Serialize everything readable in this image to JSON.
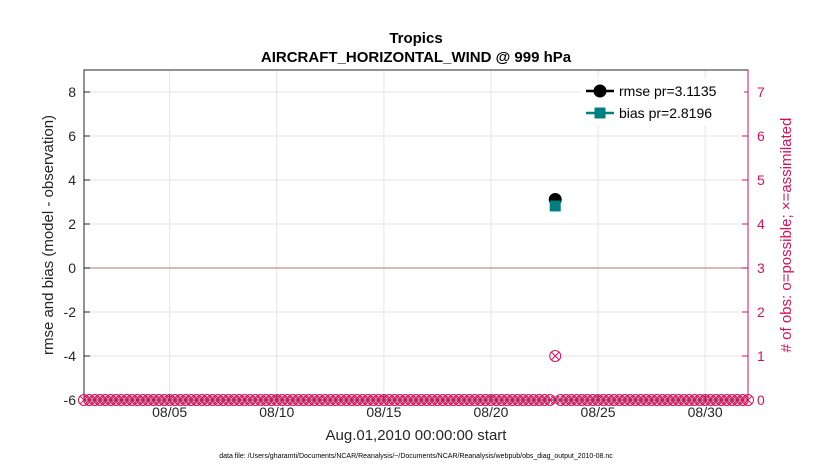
{
  "chart_data": {
    "type": "scatter",
    "title": "Tropics",
    "subtitle": "AIRCRAFT_HORIZONTAL_WIND @ 999 hPa",
    "xlabel": "Aug.01,2010 00:00:00 start",
    "ylabel": "rmse and bias (model - observation)",
    "y2label": "# of obs: o=possible; ×=assimilated",
    "xlim": [
      1,
      32
    ],
    "ylim": [
      -6,
      9
    ],
    "y2lim": [
      0,
      7.5
    ],
    "xticks": [
      {
        "v": 5,
        "label": "08/05"
      },
      {
        "v": 10,
        "label": "08/10"
      },
      {
        "v": 15,
        "label": "08/15"
      },
      {
        "v": 20,
        "label": "08/20"
      },
      {
        "v": 25,
        "label": "08/25"
      },
      {
        "v": 30,
        "label": "08/30"
      }
    ],
    "yticks": [
      -6,
      -4,
      -2,
      0,
      2,
      4,
      6,
      8
    ],
    "y2ticks": [
      0,
      1,
      2,
      3,
      4,
      5,
      6,
      7
    ],
    "series": [
      {
        "name": "rmse",
        "legend": "rmse pr=3.1135",
        "color": "#000000",
        "marker": "circle",
        "points": [
          {
            "x": 23,
            "y": 3.1135
          }
        ]
      },
      {
        "name": "bias",
        "legend": "bias pr=2.8196",
        "color": "#008080",
        "marker": "square",
        "points": [
          {
            "x": 23,
            "y": 2.8196
          }
        ]
      }
    ],
    "obs_counts": {
      "color": "#d6125c",
      "x_start": 1,
      "x_end": 32,
      "step": 0.25,
      "special": [
        {
          "x": 23,
          "possible": 1,
          "assimilated": 1
        }
      ]
    },
    "legend_position": "top-right",
    "grid": true
  },
  "footer": "data file: /Users/gharamti/Documents/NCAR/Reanalysis/~/Documents/NCAR/Reanalysis/webpub/obs_diag_output_2010-08.nc"
}
